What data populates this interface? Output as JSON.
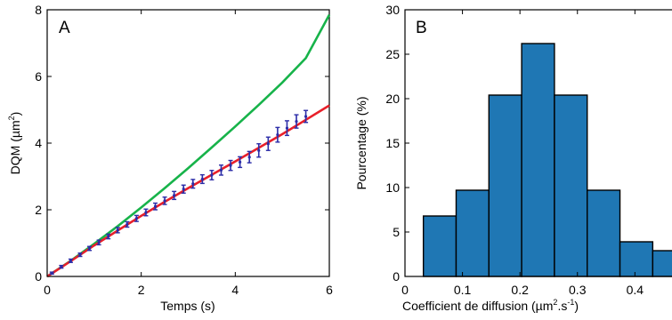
{
  "colors": {
    "green_curve": "#17b34a",
    "red_curve": "#e8202a",
    "data_points": "#2b2ca8",
    "bars": "#1f77b4",
    "bar_edge": "#000000"
  },
  "chart_data": [
    {
      "type": "line",
      "panel_label": "A",
      "xlabel": "Temps (s)",
      "ylabel": "DQM (µm",
      "ylabel_sup": "2",
      "ylabel_end": ")",
      "xlim": [
        0,
        6
      ],
      "ylim": [
        0,
        8
      ],
      "xticks": [
        0,
        2,
        4,
        6
      ],
      "yticks": [
        0,
        2,
        4,
        6,
        8
      ],
      "grid": false,
      "series": [
        {
          "style": "line",
          "color": "#17b34a",
          "x": [
            0,
            0.5,
            1,
            1.5,
            2,
            2.5,
            3,
            3.5,
            4,
            4.5,
            5,
            5.5,
            6
          ],
          "y": [
            0,
            0.47,
            0.98,
            1.51,
            2.07,
            2.65,
            3.25,
            3.87,
            4.5,
            5.15,
            5.82,
            6.55,
            7.85
          ]
        },
        {
          "style": "line",
          "color": "#e8202a",
          "x": [
            0,
            0.5,
            1,
            1.5,
            2,
            2.5,
            3,
            3.5,
            4,
            4.5,
            5,
            5.5,
            6
          ],
          "y": [
            0,
            0.46,
            0.93,
            1.38,
            1.82,
            2.24,
            2.65,
            3.05,
            3.45,
            3.86,
            4.27,
            4.7,
            5.13
          ]
        },
        {
          "style": "errorbar",
          "color": "#2b2ca8",
          "x": [
            0.1,
            0.3,
            0.5,
            0.7,
            0.9,
            1.1,
            1.3,
            1.5,
            1.7,
            1.9,
            2.1,
            2.3,
            2.5,
            2.7,
            2.9,
            3.1,
            3.3,
            3.5,
            3.7,
            3.9,
            4.1,
            4.3,
            4.5,
            4.7,
            4.9,
            5.1,
            5.3,
            5.5
          ],
          "y": [
            0.1,
            0.29,
            0.47,
            0.65,
            0.84,
            1.02,
            1.2,
            1.39,
            1.56,
            1.74,
            1.92,
            2.1,
            2.27,
            2.43,
            2.62,
            2.78,
            2.92,
            3.04,
            3.19,
            3.33,
            3.43,
            3.58,
            3.78,
            3.98,
            4.25,
            4.45,
            4.65,
            4.8
          ],
          "err": [
            0.03,
            0.04,
            0.05,
            0.05,
            0.06,
            0.07,
            0.07,
            0.08,
            0.08,
            0.09,
            0.1,
            0.1,
            0.11,
            0.12,
            0.12,
            0.13,
            0.13,
            0.14,
            0.15,
            0.15,
            0.16,
            0.17,
            0.2,
            0.2,
            0.22,
            0.22,
            0.2,
            0.18
          ]
        }
      ]
    },
    {
      "type": "bar",
      "panel_label": "B",
      "xlabel": "Coefficient de diffusion  (µm",
      "xlabel_sup": "2",
      "xlabel_mid": ".s",
      "xlabel_sup2": "-1",
      "xlabel_end": ")",
      "ylabel": "Pourcentage (%)",
      "xlim": [
        0,
        0.48
      ],
      "ylim": [
        0,
        30
      ],
      "xticks": [
        0,
        0.1,
        0.2,
        0.3,
        0.4
      ],
      "xtick_labels": [
        "0",
        "0.1",
        "0.2",
        "0.3",
        "0.4"
      ],
      "yticks": [
        0,
        5,
        10,
        15,
        20,
        25,
        30
      ],
      "grid": false,
      "bin_edges": [
        0.032,
        0.089,
        0.146,
        0.203,
        0.26,
        0.317,
        0.374,
        0.431,
        0.488
      ],
      "values": [
        6.8,
        9.7,
        20.4,
        26.2,
        20.4,
        9.7,
        3.9,
        2.9
      ]
    }
  ]
}
